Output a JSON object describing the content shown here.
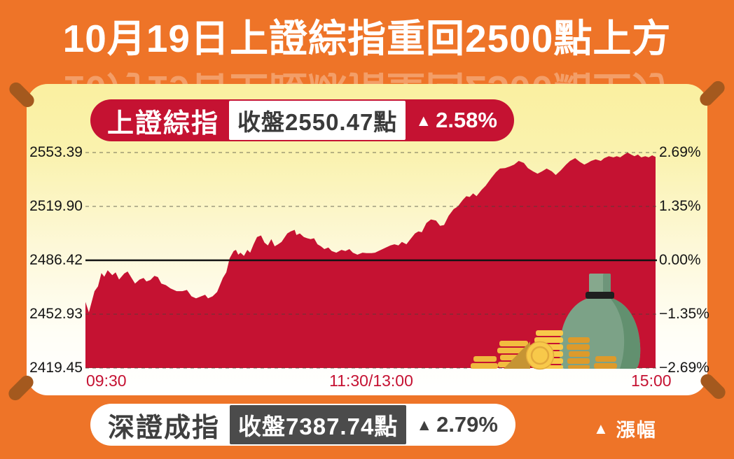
{
  "title": "10月19日上證綜指重回2500點上方",
  "colors": {
    "background_orange": "#EE7428",
    "card_yellow": "#FAF0A0",
    "chart_red": "#C51232",
    "dark_box_gray": "#4B4B4B",
    "pin_brown": "#A4591E",
    "bag_green": "#7CA287",
    "coin_gold": "#F8C94A",
    "coin_orange": "#DD9A2B"
  },
  "index_badge": {
    "name": "上證綜指",
    "close_label": "收盤2550.47點",
    "change_symbol": "▲",
    "change_value": "2.58%"
  },
  "shenzhen_badge": {
    "name": "深證成指",
    "close_label": "收盤7387.74點",
    "change_symbol": "▲",
    "change_value": "2.79%"
  },
  "legend": {
    "symbol": "▲",
    "label": "漲幅"
  },
  "chart_data": {
    "type": "area",
    "title": "上證綜指 2018-10-19 分時走勢",
    "baseline_value": 2486.42,
    "close_value": 2550.47,
    "change_pct": 2.58,
    "ylim_pct": [
      -2.69,
      2.69
    ],
    "y_axis_left": [
      "2553.39",
      "2519.90",
      "2486.42",
      "2452.93",
      "2419.45"
    ],
    "y_axis_right": [
      "2.69%",
      "1.35%",
      "0.00%",
      "−1.35%",
      "−2.69%"
    ],
    "x_ticks": [
      "09:30",
      "11:30/13:00",
      "15:00"
    ],
    "grid": "dashed horizontal, solid zero line",
    "series": [
      {
        "name": "上證綜指",
        "points_pct": [
          [
            0,
            -1.04
          ],
          [
            0.006,
            -1.3
          ],
          [
            0.016,
            -0.77
          ],
          [
            0.022,
            -0.65
          ],
          [
            0.028,
            -0.32
          ],
          [
            0.033,
            -0.41
          ],
          [
            0.039,
            -0.25
          ],
          [
            0.047,
            -0.37
          ],
          [
            0.053,
            -0.3
          ],
          [
            0.059,
            -0.48
          ],
          [
            0.068,
            -0.33
          ],
          [
            0.074,
            -0.28
          ],
          [
            0.08,
            -0.42
          ],
          [
            0.087,
            -0.58
          ],
          [
            0.095,
            -0.48
          ],
          [
            0.102,
            -0.44
          ],
          [
            0.107,
            -0.53
          ],
          [
            0.114,
            -0.49
          ],
          [
            0.121,
            -0.39
          ],
          [
            0.127,
            -0.42
          ],
          [
            0.133,
            -0.58
          ],
          [
            0.141,
            -0.62
          ],
          [
            0.149,
            -0.7
          ],
          [
            0.16,
            -0.77
          ],
          [
            0.17,
            -0.77
          ],
          [
            0.178,
            -0.74
          ],
          [
            0.186,
            -0.9
          ],
          [
            0.194,
            -0.95
          ],
          [
            0.203,
            -0.9
          ],
          [
            0.21,
            -0.86
          ],
          [
            0.215,
            -0.95
          ],
          [
            0.223,
            -0.9
          ],
          [
            0.231,
            -0.79
          ],
          [
            0.235,
            -0.65
          ],
          [
            0.241,
            -0.44
          ],
          [
            0.247,
            -0.3
          ],
          [
            0.253,
            0.05
          ],
          [
            0.26,
            0.23
          ],
          [
            0.264,
            0.26
          ],
          [
            0.268,
            0.14
          ],
          [
            0.272,
            0.19
          ],
          [
            0.278,
            0.11
          ],
          [
            0.284,
            0.26
          ],
          [
            0.289,
            0.19
          ],
          [
            0.295,
            0.4
          ],
          [
            0.301,
            0.58
          ],
          [
            0.308,
            0.62
          ],
          [
            0.314,
            0.44
          ],
          [
            0.32,
            0.37
          ],
          [
            0.326,
            0.53
          ],
          [
            0.332,
            0.35
          ],
          [
            0.338,
            0.4
          ],
          [
            0.344,
            0.46
          ],
          [
            0.354,
            0.67
          ],
          [
            0.36,
            0.72
          ],
          [
            0.367,
            0.76
          ],
          [
            0.37,
            0.63
          ],
          [
            0.376,
            0.67
          ],
          [
            0.383,
            0.58
          ],
          [
            0.389,
            0.55
          ],
          [
            0.395,
            0.53
          ],
          [
            0.401,
            0.55
          ],
          [
            0.407,
            0.4
          ],
          [
            0.413,
            0.35
          ],
          [
            0.419,
            0.28
          ],
          [
            0.426,
            0.32
          ],
          [
            0.432,
            0.23
          ],
          [
            0.44,
            0.19
          ],
          [
            0.449,
            0.26
          ],
          [
            0.456,
            0.23
          ],
          [
            0.463,
            0.28
          ],
          [
            0.469,
            0.19
          ],
          [
            0.477,
            0.14
          ],
          [
            0.486,
            0.19
          ],
          [
            0.493,
            0.18
          ],
          [
            0.502,
            0.18
          ],
          [
            0.508,
            0.19
          ],
          [
            0.514,
            0.23
          ],
          [
            0.527,
            0.32
          ],
          [
            0.535,
            0.37
          ],
          [
            0.542,
            0.4
          ],
          [
            0.549,
            0.37
          ],
          [
            0.555,
            0.46
          ],
          [
            0.563,
            0.4
          ],
          [
            0.57,
            0.53
          ],
          [
            0.578,
            0.67
          ],
          [
            0.584,
            0.72
          ],
          [
            0.59,
            0.7
          ],
          [
            0.598,
            0.93
          ],
          [
            0.606,
            1.02
          ],
          [
            0.615,
            0.99
          ],
          [
            0.622,
            0.86
          ],
          [
            0.629,
            0.88
          ],
          [
            0.637,
            1.11
          ],
          [
            0.646,
            1.28
          ],
          [
            0.653,
            1.34
          ],
          [
            0.662,
            1.51
          ],
          [
            0.668,
            1.6
          ],
          [
            0.674,
            1.58
          ],
          [
            0.68,
            1.67
          ],
          [
            0.686,
            1.6
          ],
          [
            0.695,
            1.76
          ],
          [
            0.702,
            1.86
          ],
          [
            0.711,
            2.04
          ],
          [
            0.72,
            2.2
          ],
          [
            0.727,
            2.29
          ],
          [
            0.736,
            2.3
          ],
          [
            0.744,
            2.34
          ],
          [
            0.752,
            2.39
          ],
          [
            0.76,
            2.48
          ],
          [
            0.769,
            2.43
          ],
          [
            0.776,
            2.3
          ],
          [
            0.785,
            2.22
          ],
          [
            0.793,
            2.16
          ],
          [
            0.801,
            2.22
          ],
          [
            0.809,
            2.29
          ],
          [
            0.818,
            2.22
          ],
          [
            0.825,
            2.13
          ],
          [
            0.834,
            2.25
          ],
          [
            0.843,
            2.39
          ],
          [
            0.85,
            2.48
          ],
          [
            0.859,
            2.55
          ],
          [
            0.867,
            2.46
          ],
          [
            0.875,
            2.39
          ],
          [
            0.881,
            2.43
          ],
          [
            0.887,
            2.48
          ],
          [
            0.895,
            2.52
          ],
          [
            0.904,
            2.48
          ],
          [
            0.91,
            2.55
          ],
          [
            0.918,
            2.6
          ],
          [
            0.926,
            2.57
          ],
          [
            0.932,
            2.6
          ],
          [
            0.938,
            2.57
          ],
          [
            0.945,
            2.64
          ],
          [
            0.951,
            2.69
          ],
          [
            0.957,
            2.64
          ],
          [
            0.963,
            2.6
          ],
          [
            0.969,
            2.64
          ],
          [
            0.975,
            2.57
          ],
          [
            0.982,
            2.6
          ],
          [
            0.988,
            2.57
          ],
          [
            0.994,
            2.62
          ],
          [
            1,
            2.58
          ]
        ]
      }
    ]
  }
}
